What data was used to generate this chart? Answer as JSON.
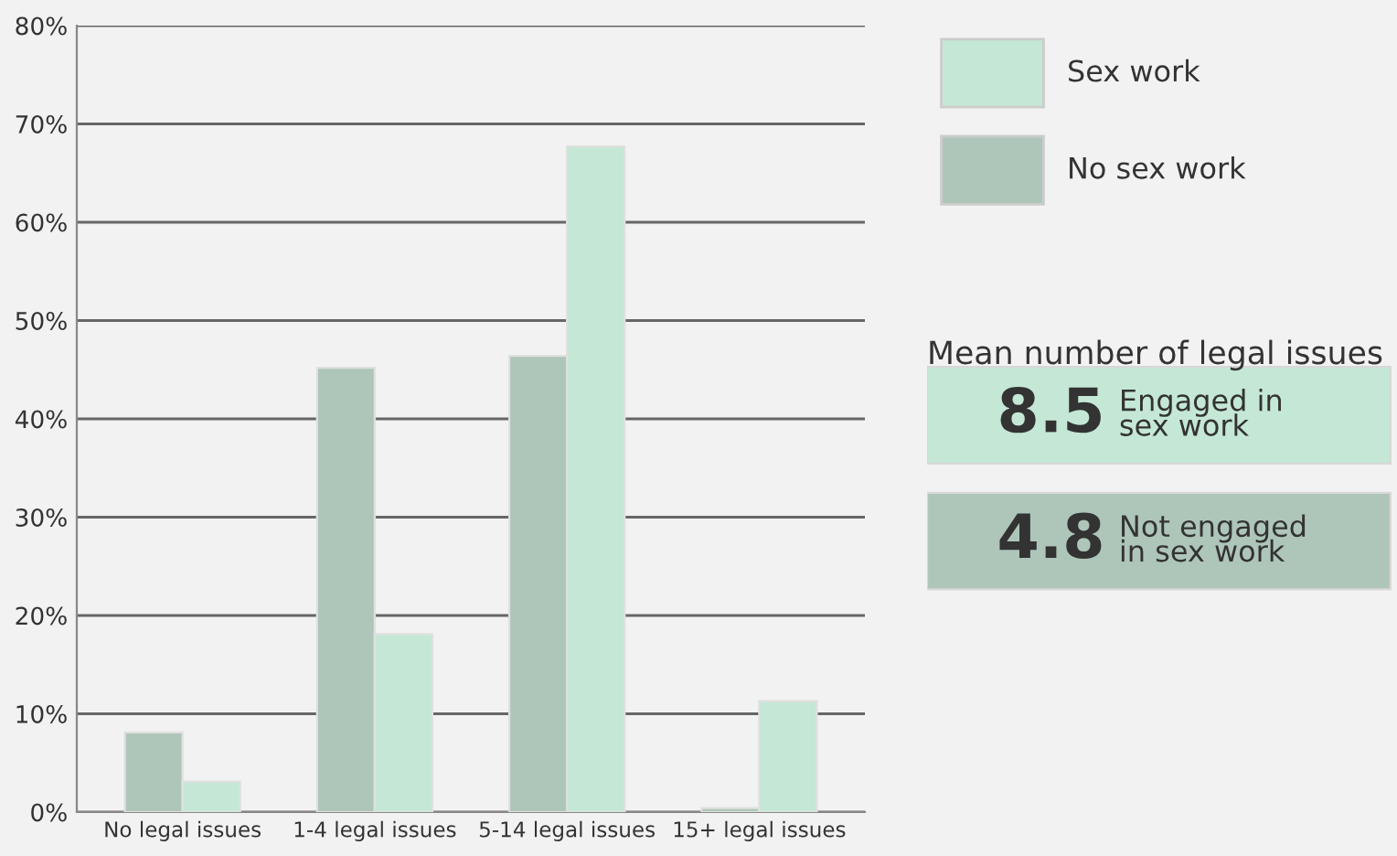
{
  "chart_data": [
    {
      "type": "bar",
      "categories": [
        "No legal issues",
        "1-4 legal issues",
        "5-14 legal issues",
        "15+ legal issues"
      ],
      "series": [
        {
          "name": "No sex work",
          "color": "#aec6b9",
          "values": [
            8.1,
            45.2,
            46.4,
            0.4
          ]
        },
        {
          "name": "Sex work",
          "color": "#c5e8d6",
          "values": [
            3.1,
            18.1,
            67.7,
            11.3
          ]
        }
      ],
      "ylim": [
        0,
        80
      ],
      "yticks": [
        {
          "value": 0,
          "label": "0%"
        },
        {
          "value": 10,
          "label": "10%"
        },
        {
          "value": 20,
          "label": "20%"
        },
        {
          "value": 30,
          "label": "30%"
        },
        {
          "value": 40,
          "label": "40%"
        },
        {
          "value": 50,
          "label": "50%"
        },
        {
          "value": 60,
          "label": "60%"
        },
        {
          "value": 70,
          "label": "70%"
        },
        {
          "value": 80,
          "label": "80%"
        }
      ],
      "grid": "y",
      "legend": "top right"
    },
    {
      "type": "other",
      "title": "Mean number of legal issues",
      "colors": [
        "#c5e8d6",
        "#aec6b9"
      ],
      "annotations": [
        "8.5",
        "Engaged in\nsex work",
        "4.8",
        "Not engaged\nin sex work"
      ]
    }
  ]
}
